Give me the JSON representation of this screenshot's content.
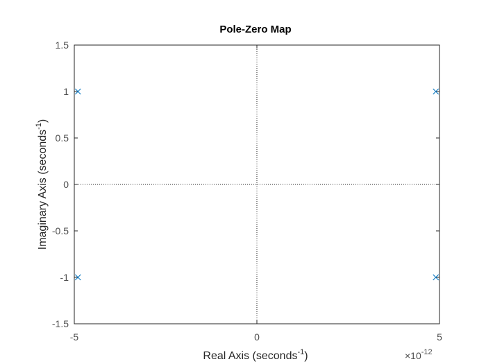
{
  "chart_data": {
    "type": "scatter",
    "title": "Pole-Zero Map",
    "xlabel": {
      "main": "Real Axis (seconds",
      "sup": "-1",
      "tail": ")"
    },
    "ylabel": {
      "main": "Imaginary Axis (seconds",
      "sup": "-1",
      "tail": ")"
    },
    "x_exponent": {
      "base": "×10",
      "power": "-12"
    },
    "xlim": [
      -5,
      5
    ],
    "ylim": [
      -1.5,
      1.5
    ],
    "xticks": [
      -5,
      0,
      5
    ],
    "xtick_labels": [
      "-5",
      "0",
      "5"
    ],
    "yticks": [
      1.5,
      1,
      0.5,
      0,
      -0.5,
      -1,
      -1.5
    ],
    "ytick_labels": [
      "1.5",
      "1",
      "0.5",
      "0",
      "-0.5",
      "-1",
      "-1.5"
    ],
    "grid": false,
    "reference_lines": {
      "x": 0,
      "y": 0,
      "style": "dotted"
    },
    "series": [
      {
        "marker": "x",
        "color": "#0072bd",
        "points": [
          {
            "x": -4.9,
            "y": 1
          },
          {
            "x": -4.9,
            "y": -1
          },
          {
            "x": 4.9,
            "y": 1
          },
          {
            "x": 4.9,
            "y": -1
          }
        ]
      }
    ]
  },
  "colors": {
    "axis": "#262626",
    "tick_text": "#4d4d4d",
    "marker": "#0072bd",
    "background": "#ffffff"
  }
}
